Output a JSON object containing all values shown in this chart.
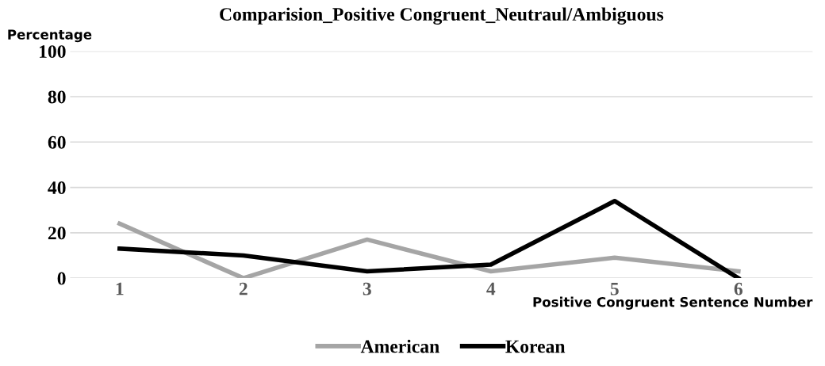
{
  "chart_data": {
    "type": "line",
    "title": "Comparision_Positive Congruent_Neutraul/Ambiguous",
    "xlabel": "Positive Congruent Sentence Number",
    "ylabel": "Percentage",
    "categories": [
      "1",
      "2",
      "3",
      "4",
      "5",
      "6"
    ],
    "series": [
      {
        "name": "American",
        "color": "#a5a5a5",
        "values": [
          24,
          0,
          17,
          3,
          9,
          3
        ]
      },
      {
        "name": "Korean",
        "color": "#000000",
        "values": [
          13,
          10,
          3,
          6,
          34,
          0
        ]
      }
    ],
    "ylim": [
      0,
      100
    ],
    "yticks": [
      0,
      20,
      40,
      60,
      80,
      100
    ],
    "grid": "y",
    "legend": "bottom",
    "marker": "none",
    "line_style": "solid"
  }
}
